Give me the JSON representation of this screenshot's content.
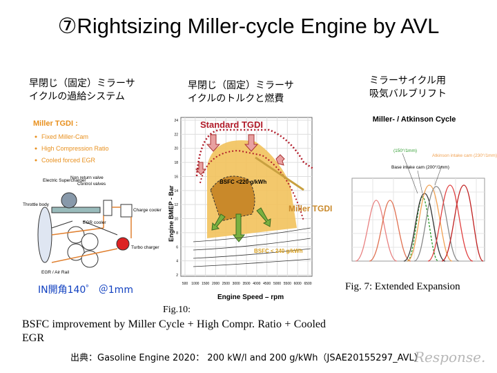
{
  "title": "⑦Rightsizing Miller-cycle Engine by AVL",
  "panels": [
    {
      "caption": [
        "早閉じ（固定）ミラーサ",
        "イクルの過給システム"
      ],
      "figure": {
        "heading": "Miller TGDI :",
        "bullets": [
          "Fixed Miller-Cam",
          "High Compression Ratio",
          "Cooled forced EGR"
        ],
        "labels": [
          "Electric Supercharger",
          "Non return valve",
          "Control valves",
          "Throttle body",
          "EGR cooler",
          "Charge cooler",
          "Turbo charger",
          "EGR / Air Rail"
        ]
      },
      "note": "IN開角140゜ ＠1mm"
    },
    {
      "caption": [
        "早閉じ（固定）ミラーサ",
        "イクルのトルクと燃費"
      ],
      "figure": {
        "labels": [
          "Standard TGDI",
          "BSFC <220 g/kWh",
          "Miller TGDI",
          "BSFC < 240 g/kWh"
        ],
        "y_label": "Engine BMEP - Bar",
        "x_label": "Engine Speed – rpm",
        "yticks": [
          24,
          22,
          20,
          18,
          16,
          14,
          12,
          10,
          8,
          6,
          4,
          2
        ],
        "xticks": [
          500,
          1000,
          1500,
          2000,
          2500,
          3000,
          3500,
          4000,
          4500,
          5000,
          5500,
          6000,
          6500
        ]
      }
    },
    {
      "caption": [
        "ミラーサイクル用",
        "吸気バルブリフト"
      ],
      "figure": {
        "heading": "Miller- / Atkinson Cycle",
        "labels": [
          "(150°/1mm)",
          "Atkinson intake cam (230°/1mm)",
          "Base intake cam (200°/1mm)"
        ],
        "caption": "Fig. 7: Extended Expansion"
      }
    }
  ],
  "figure_caption": {
    "number": "Fig.10:",
    "text": "BSFC improvement by Miller Cycle + High Compr. Ratio + Cooled EGR"
  },
  "source": "出典：Gasoline Engine 2020： 200 kW/l and 200 g/kWh（JSAE20155297_AVL）",
  "watermark": "Response."
}
